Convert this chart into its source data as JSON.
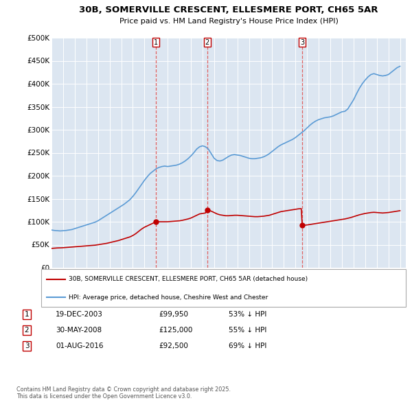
{
  "title_line1": "30B, SOMERVILLE CRESCENT, ELLESMERE PORT, CH65 5AR",
  "title_line2": "Price paid vs. HM Land Registry's House Price Index (HPI)",
  "plot_bg_color": "#dce6f1",
  "ylim": [
    0,
    500000
  ],
  "yticks": [
    0,
    50000,
    100000,
    150000,
    200000,
    250000,
    300000,
    350000,
    400000,
    450000,
    500000
  ],
  "ytick_labels": [
    "£0",
    "£50K",
    "£100K",
    "£150K",
    "£200K",
    "£250K",
    "£300K",
    "£350K",
    "£400K",
    "£450K",
    "£500K"
  ],
  "hpi_color": "#5b9bd5",
  "price_color": "#c00000",
  "vline_color": "#e06060",
  "sale_points": [
    {
      "date_num": 2003.97,
      "price": 99950,
      "label": "1"
    },
    {
      "date_num": 2008.41,
      "price": 125000,
      "label": "2"
    },
    {
      "date_num": 2016.58,
      "price": 92500,
      "label": "3"
    }
  ],
  "legend_red_label": "30B, SOMERVILLE CRESCENT, ELLESMERE PORT, CH65 5AR (detached house)",
  "legend_blue_label": "HPI: Average price, detached house, Cheshire West and Chester",
  "table_rows": [
    {
      "num": "1",
      "date": "19-DEC-2003",
      "price": "£99,950",
      "pct": "53% ↓ HPI"
    },
    {
      "num": "2",
      "date": "30-MAY-2008",
      "price": "£125,000",
      "pct": "55% ↓ HPI"
    },
    {
      "num": "3",
      "date": "01-AUG-2016",
      "price": "£92,500",
      "pct": "69% ↓ HPI"
    }
  ],
  "footnote": "Contains HM Land Registry data © Crown copyright and database right 2025.\nThis data is licensed under the Open Government Licence v3.0.",
  "hpi_data": [
    [
      1995.0,
      82000
    ],
    [
      1995.25,
      81000
    ],
    [
      1995.5,
      80500
    ],
    [
      1995.75,
      80000
    ],
    [
      1996.0,
      80500
    ],
    [
      1996.25,
      81000
    ],
    [
      1996.5,
      82000
    ],
    [
      1996.75,
      83000
    ],
    [
      1997.0,
      85000
    ],
    [
      1997.25,
      87000
    ],
    [
      1997.5,
      89000
    ],
    [
      1997.75,
      91000
    ],
    [
      1998.0,
      93000
    ],
    [
      1998.25,
      95000
    ],
    [
      1998.5,
      97000
    ],
    [
      1998.75,
      99000
    ],
    [
      1999.0,
      102000
    ],
    [
      1999.25,
      106000
    ],
    [
      1999.5,
      110000
    ],
    [
      1999.75,
      114000
    ],
    [
      2000.0,
      118000
    ],
    [
      2000.25,
      122000
    ],
    [
      2000.5,
      126000
    ],
    [
      2000.75,
      130000
    ],
    [
      2001.0,
      134000
    ],
    [
      2001.25,
      138000
    ],
    [
      2001.5,
      143000
    ],
    [
      2001.75,
      148000
    ],
    [
      2002.0,
      155000
    ],
    [
      2002.25,
      163000
    ],
    [
      2002.5,
      172000
    ],
    [
      2002.75,
      181000
    ],
    [
      2003.0,
      190000
    ],
    [
      2003.25,
      198000
    ],
    [
      2003.5,
      205000
    ],
    [
      2003.75,
      210000
    ],
    [
      2004.0,
      215000
    ],
    [
      2004.25,
      218000
    ],
    [
      2004.5,
      220000
    ],
    [
      2004.75,
      221000
    ],
    [
      2005.0,
      220000
    ],
    [
      2005.25,
      221000
    ],
    [
      2005.5,
      222000
    ],
    [
      2005.75,
      223000
    ],
    [
      2006.0,
      225000
    ],
    [
      2006.25,
      228000
    ],
    [
      2006.5,
      232000
    ],
    [
      2006.75,
      237000
    ],
    [
      2007.0,
      243000
    ],
    [
      2007.25,
      250000
    ],
    [
      2007.5,
      258000
    ],
    [
      2007.75,
      263000
    ],
    [
      2008.0,
      265000
    ],
    [
      2008.25,
      263000
    ],
    [
      2008.5,
      258000
    ],
    [
      2008.75,
      248000
    ],
    [
      2009.0,
      238000
    ],
    [
      2009.25,
      233000
    ],
    [
      2009.5,
      232000
    ],
    [
      2009.75,
      234000
    ],
    [
      2010.0,
      238000
    ],
    [
      2010.25,
      242000
    ],
    [
      2010.5,
      245000
    ],
    [
      2010.75,
      246000
    ],
    [
      2011.0,
      245000
    ],
    [
      2011.25,
      244000
    ],
    [
      2011.5,
      242000
    ],
    [
      2011.75,
      240000
    ],
    [
      2012.0,
      238000
    ],
    [
      2012.25,
      237000
    ],
    [
      2012.5,
      237000
    ],
    [
      2012.75,
      238000
    ],
    [
      2013.0,
      239000
    ],
    [
      2013.25,
      241000
    ],
    [
      2013.5,
      244000
    ],
    [
      2013.75,
      248000
    ],
    [
      2014.0,
      253000
    ],
    [
      2014.25,
      258000
    ],
    [
      2014.5,
      263000
    ],
    [
      2014.75,
      267000
    ],
    [
      2015.0,
      270000
    ],
    [
      2015.25,
      273000
    ],
    [
      2015.5,
      276000
    ],
    [
      2015.75,
      279000
    ],
    [
      2016.0,
      283000
    ],
    [
      2016.25,
      288000
    ],
    [
      2016.5,
      293000
    ],
    [
      2016.75,
      298000
    ],
    [
      2017.0,
      304000
    ],
    [
      2017.25,
      310000
    ],
    [
      2017.5,
      315000
    ],
    [
      2017.75,
      319000
    ],
    [
      2018.0,
      322000
    ],
    [
      2018.25,
      324000
    ],
    [
      2018.5,
      326000
    ],
    [
      2018.75,
      327000
    ],
    [
      2019.0,
      328000
    ],
    [
      2019.25,
      330000
    ],
    [
      2019.5,
      333000
    ],
    [
      2019.75,
      336000
    ],
    [
      2020.0,
      339000
    ],
    [
      2020.25,
      340000
    ],
    [
      2020.5,
      345000
    ],
    [
      2020.75,
      355000
    ],
    [
      2021.0,
      365000
    ],
    [
      2021.25,
      378000
    ],
    [
      2021.5,
      390000
    ],
    [
      2021.75,
      400000
    ],
    [
      2022.0,
      408000
    ],
    [
      2022.25,
      415000
    ],
    [
      2022.5,
      420000
    ],
    [
      2022.75,
      422000
    ],
    [
      2023.0,
      420000
    ],
    [
      2023.25,
      418000
    ],
    [
      2023.5,
      417000
    ],
    [
      2023.75,
      418000
    ],
    [
      2024.0,
      420000
    ],
    [
      2024.25,
      425000
    ],
    [
      2024.5,
      430000
    ],
    [
      2024.75,
      435000
    ],
    [
      2025.0,
      438000
    ]
  ],
  "price_data": [
    [
      1995.0,
      42000
    ],
    [
      1995.25,
      42500
    ],
    [
      1995.5,
      43000
    ],
    [
      1995.75,
      43200
    ],
    [
      1996.0,
      43500
    ],
    [
      1996.25,
      44000
    ],
    [
      1996.5,
      44500
    ],
    [
      1996.75,
      45000
    ],
    [
      1997.0,
      45500
    ],
    [
      1997.25,
      46000
    ],
    [
      1997.5,
      46500
    ],
    [
      1997.75,
      47000
    ],
    [
      1998.0,
      47500
    ],
    [
      1998.25,
      48000
    ],
    [
      1998.5,
      48500
    ],
    [
      1998.75,
      49000
    ],
    [
      1999.0,
      50000
    ],
    [
      1999.25,
      51000
    ],
    [
      1999.5,
      52000
    ],
    [
      1999.75,
      53000
    ],
    [
      2000.0,
      54500
    ],
    [
      2000.25,
      56000
    ],
    [
      2000.5,
      57500
    ],
    [
      2000.75,
      59000
    ],
    [
      2001.0,
      61000
    ],
    [
      2001.25,
      63000
    ],
    [
      2001.5,
      65000
    ],
    [
      2001.75,
      67000
    ],
    [
      2002.0,
      70000
    ],
    [
      2002.25,
      74000
    ],
    [
      2002.5,
      79000
    ],
    [
      2002.75,
      84000
    ],
    [
      2003.0,
      88000
    ],
    [
      2003.25,
      91000
    ],
    [
      2003.5,
      94000
    ],
    [
      2003.75,
      97000
    ],
    [
      2003.97,
      99950
    ],
    [
      2004.0,
      99950
    ],
    [
      2004.25,
      99950
    ],
    [
      2004.5,
      99950
    ],
    [
      2004.75,
      99950
    ],
    [
      2005.0,
      100000
    ],
    [
      2005.25,
      100500
    ],
    [
      2005.5,
      101000
    ],
    [
      2005.75,
      101500
    ],
    [
      2006.0,
      102000
    ],
    [
      2006.25,
      103000
    ],
    [
      2006.5,
      104500
    ],
    [
      2006.75,
      106000
    ],
    [
      2007.0,
      108000
    ],
    [
      2007.25,
      111000
    ],
    [
      2007.5,
      114000
    ],
    [
      2007.75,
      117000
    ],
    [
      2008.0,
      118000
    ],
    [
      2008.25,
      119000
    ],
    [
      2008.41,
      125000
    ],
    [
      2008.5,
      125000
    ],
    [
      2008.75,
      123000
    ],
    [
      2009.0,
      120000
    ],
    [
      2009.25,
      117000
    ],
    [
      2009.5,
      115000
    ],
    [
      2009.75,
      114000
    ],
    [
      2010.0,
      113000
    ],
    [
      2010.25,
      113000
    ],
    [
      2010.5,
      113500
    ],
    [
      2010.75,
      114000
    ],
    [
      2011.0,
      114000
    ],
    [
      2011.25,
      113500
    ],
    [
      2011.5,
      113000
    ],
    [
      2011.75,
      112500
    ],
    [
      2012.0,
      112000
    ],
    [
      2012.25,
      111500
    ],
    [
      2012.5,
      111000
    ],
    [
      2012.75,
      111000
    ],
    [
      2013.0,
      111500
    ],
    [
      2013.25,
      112000
    ],
    [
      2013.5,
      113000
    ],
    [
      2013.75,
      114000
    ],
    [
      2014.0,
      116000
    ],
    [
      2014.25,
      118000
    ],
    [
      2014.5,
      120000
    ],
    [
      2014.75,
      122000
    ],
    [
      2015.0,
      123000
    ],
    [
      2015.25,
      124000
    ],
    [
      2015.5,
      125000
    ],
    [
      2015.75,
      126000
    ],
    [
      2016.0,
      127000
    ],
    [
      2016.25,
      128000
    ],
    [
      2016.5,
      128500
    ],
    [
      2016.58,
      92500
    ],
    [
      2016.75,
      92500
    ],
    [
      2017.0,
      93000
    ],
    [
      2017.25,
      94000
    ],
    [
      2017.5,
      95000
    ],
    [
      2017.75,
      96000
    ],
    [
      2018.0,
      97000
    ],
    [
      2018.25,
      98000
    ],
    [
      2018.5,
      99000
    ],
    [
      2018.75,
      100000
    ],
    [
      2019.0,
      101000
    ],
    [
      2019.25,
      102000
    ],
    [
      2019.5,
      103000
    ],
    [
      2019.75,
      104000
    ],
    [
      2020.0,
      105000
    ],
    [
      2020.25,
      106000
    ],
    [
      2020.5,
      107500
    ],
    [
      2020.75,
      109000
    ],
    [
      2021.0,
      111000
    ],
    [
      2021.25,
      113000
    ],
    [
      2021.5,
      115000
    ],
    [
      2021.75,
      116500
    ],
    [
      2022.0,
      118000
    ],
    [
      2022.25,
      119000
    ],
    [
      2022.5,
      120000
    ],
    [
      2022.75,
      120500
    ],
    [
      2023.0,
      120000
    ],
    [
      2023.25,
      119500
    ],
    [
      2023.5,
      119000
    ],
    [
      2023.75,
      119500
    ],
    [
      2024.0,
      120000
    ],
    [
      2024.25,
      121000
    ],
    [
      2024.5,
      122000
    ],
    [
      2024.75,
      123000
    ],
    [
      2025.0,
      124000
    ]
  ]
}
